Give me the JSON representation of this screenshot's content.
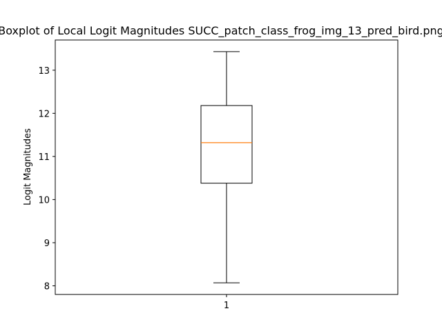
{
  "chart_data": {
    "type": "boxplot",
    "title": "Boxplot of Local Logit Magnitudes SUCC_patch_class_frog_img_13_pred_bird.png",
    "xlabel": "",
    "ylabel": "Logit Magnitudes",
    "categories": [
      "1"
    ],
    "boxes": [
      {
        "category": "1",
        "whisker_low": 8.07,
        "q1": 10.38,
        "median": 11.32,
        "q3": 12.18,
        "whisker_high": 13.43
      }
    ],
    "ylim": [
      7.8,
      13.7
    ],
    "yticks": [
      8,
      9,
      10,
      11,
      12,
      13
    ],
    "xticks": [
      "1"
    ],
    "grid": false,
    "colors": {
      "box": "#000000",
      "median": "#ff7f0e",
      "whisker": "#000000"
    }
  }
}
